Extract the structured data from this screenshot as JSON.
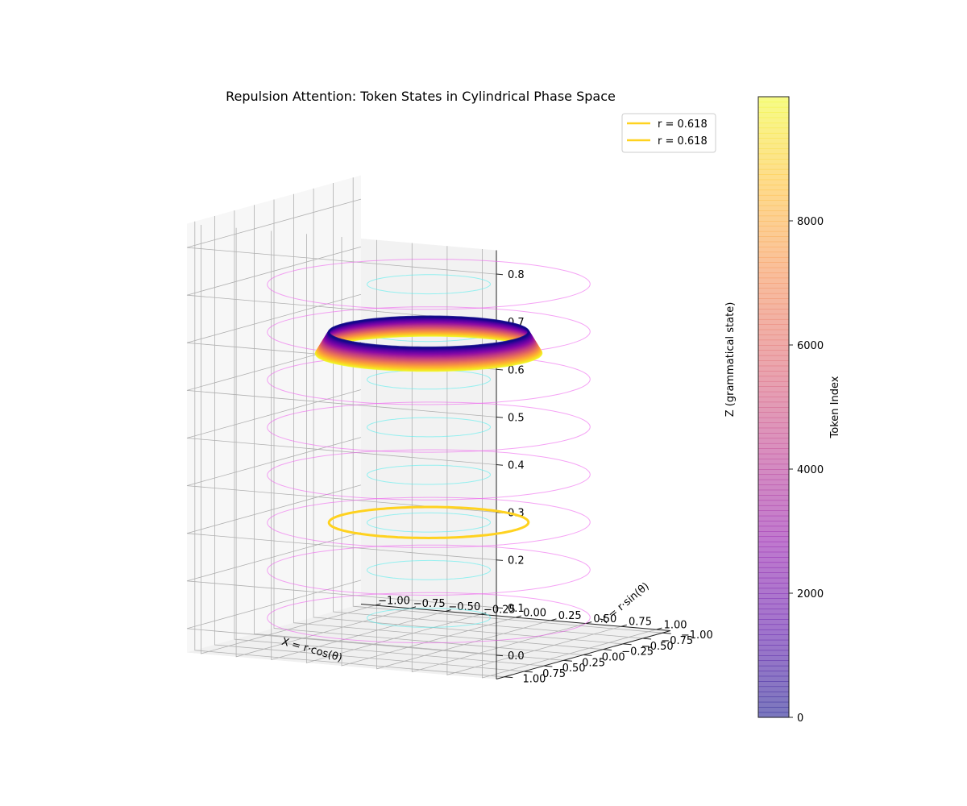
{
  "chart_data": {
    "type": "3d-line",
    "title": "Repulsion Attention: Token States in Cylindrical Phase Space",
    "xlabel": "X = r·cos(θ)",
    "ylabel": "Y = r·sin(θ)",
    "zlabel": "Z (grammatical state)",
    "xlim": [
      -1.1,
      1.1
    ],
    "ylim": [
      -1.1,
      1.1
    ],
    "zlim": [
      -0.05,
      0.85
    ],
    "x_ticks": [
      -1.0,
      -0.75,
      -0.5,
      -0.25,
      0.0,
      0.25,
      0.5,
      0.75,
      1.0
    ],
    "x_tick_labels": [
      "−1.00",
      "−0.75",
      "−0.50",
      "−0.25",
      "0.00",
      "0.25",
      "0.50",
      "0.75",
      "1.00"
    ],
    "y_ticks": [
      -1.0,
      -0.75,
      -0.5,
      -0.25,
      0.0,
      0.25,
      0.5,
      0.75,
      1.0
    ],
    "y_tick_labels": [
      "−1.00",
      "−0.75",
      "−0.50",
      "−0.25",
      "0.00",
      "0.25",
      "0.50",
      "0.75",
      "1.00"
    ],
    "z_ticks": [
      0.0,
      0.1,
      0.2,
      0.3,
      0.4,
      0.5,
      0.6,
      0.7,
      0.8
    ],
    "z_tick_labels": [
      "0.0",
      "0.1",
      "0.2",
      "0.3",
      "0.4",
      "0.5",
      "0.6",
      "0.7",
      "0.8"
    ],
    "grid": true,
    "legend_placement": "top-right",
    "legend": [
      {
        "label": "r = 0.618",
        "color": "#ffd21f"
      },
      {
        "label": "r = 0.618",
        "color": "#ffd21f"
      }
    ],
    "colorbar": {
      "label": "Token Index",
      "colormap": "plasma",
      "range": [
        0,
        10000
      ],
      "ticks": [
        0,
        2000,
        4000,
        6000,
        8000
      ],
      "tick_labels": [
        "0",
        "2000",
        "4000",
        "6000",
        "8000"
      ]
    },
    "series": [
      {
        "kind": "reference-cylinder",
        "radius": 1.0,
        "z_levels": [
          0.0,
          0.1,
          0.2,
          0.3,
          0.4,
          0.5,
          0.6,
          0.7
        ],
        "color": "#ee66ee"
      },
      {
        "kind": "reference-cylinder",
        "radius": 0.382,
        "z_levels": [
          0.0,
          0.1,
          0.2,
          0.3,
          0.4,
          0.5,
          0.6,
          0.7
        ],
        "color": "#55eeee"
      },
      {
        "kind": "golden-ring",
        "radius": 0.618,
        "z": 0.2,
        "color": "#ffd21f"
      },
      {
        "kind": "token-trajectories",
        "radius": [
          0.618,
          0.7
        ],
        "z": [
          0.6,
          0.6
        ],
        "token_range": [
          0,
          10000
        ]
      }
    ]
  }
}
